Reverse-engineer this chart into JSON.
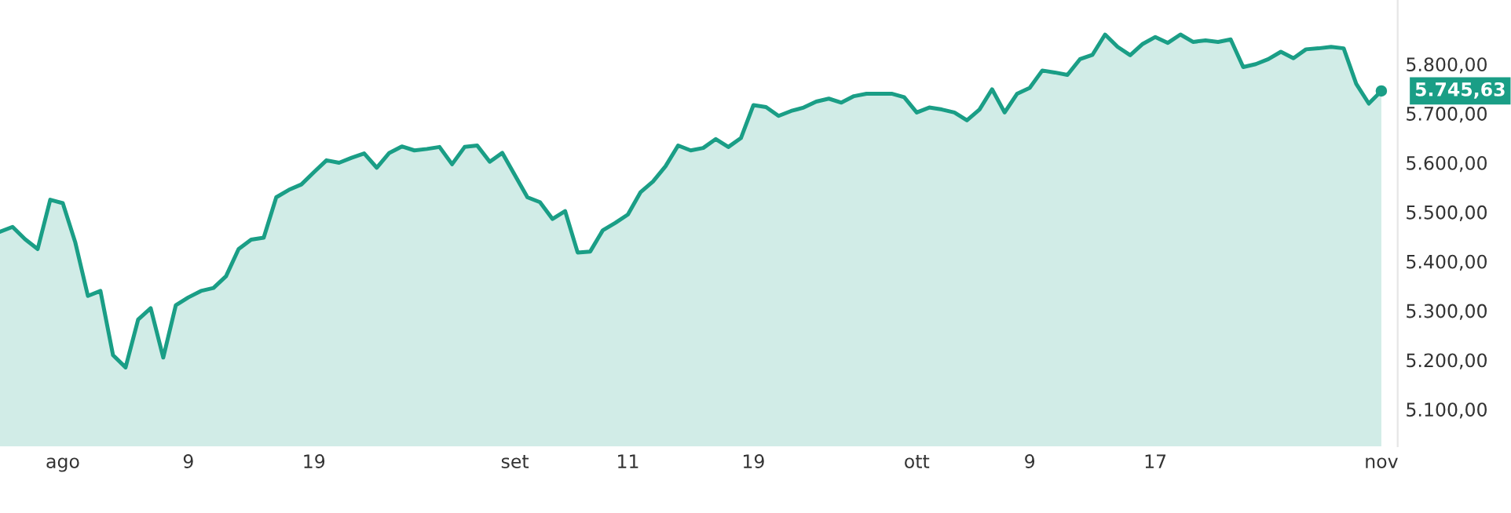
{
  "chart_data": {
    "type": "area",
    "categories": [
      null,
      null,
      null,
      null,
      null,
      "ago",
      null,
      null,
      null,
      null,
      null,
      null,
      null,
      null,
      null,
      "9",
      null,
      null,
      null,
      null,
      null,
      null,
      null,
      null,
      null,
      "19",
      null,
      null,
      null,
      null,
      null,
      null,
      null,
      null,
      null,
      null,
      null,
      null,
      null,
      null,
      null,
      "set",
      null,
      null,
      null,
      null,
      null,
      null,
      null,
      null,
      "11",
      null,
      null,
      null,
      null,
      null,
      null,
      null,
      null,
      null,
      "19",
      null,
      null,
      null,
      null,
      null,
      null,
      null,
      null,
      null,
      null,
      null,
      null,
      "ott",
      null,
      null,
      null,
      null,
      null,
      null,
      null,
      null,
      "9",
      null,
      null,
      null,
      null,
      null,
      null,
      null,
      null,
      null,
      "17",
      null,
      null,
      null,
      null,
      null,
      null,
      null,
      null,
      null,
      null,
      null,
      null,
      null,
      null,
      null,
      null,
      null,
      "nov"
    ],
    "series": [
      {
        "color": "#1a9e86",
        "values": [
          5460,
          5470,
          5445,
          5425,
          5525,
          5518,
          5438,
          5330,
          5340,
          5210,
          5185,
          5282,
          5305,
          5205,
          5311,
          5327,
          5340,
          5346,
          5370,
          5425,
          5444,
          5448,
          5530,
          5545,
          5556,
          5581,
          5605,
          5600,
          5610,
          5619,
          5590,
          5620,
          5633,
          5625,
          5628,
          5632,
          5597,
          5632,
          5635,
          5602,
          5620,
          5575,
          5530,
          5520,
          5486,
          5502,
          5418,
          5420,
          5463,
          5478,
          5495,
          5540,
          5562,
          5593,
          5635,
          5625,
          5630,
          5648,
          5632,
          5650,
          5717,
          5713,
          5695,
          5705,
          5712,
          5724,
          5730,
          5722,
          5735,
          5740,
          5740,
          5740,
          5733,
          5702,
          5712,
          5708,
          5702,
          5686,
          5708,
          5749,
          5702,
          5740,
          5752,
          5787,
          5783,
          5778,
          5810,
          5819,
          5860,
          5835,
          5818,
          5841,
          5855,
          5843,
          5860,
          5845,
          5848,
          5845,
          5850,
          5794,
          5800,
          5810,
          5825,
          5812,
          5830,
          5832,
          5835,
          5832,
          5760,
          5720,
          5745.63
        ]
      }
    ],
    "ylim": [
      5025,
      5930
    ],
    "yticks": [
      {
        "value": 5100,
        "label": "5.100,00"
      },
      {
        "value": 5200,
        "label": "5.200,00"
      },
      {
        "value": 5300,
        "label": "5.300,00"
      },
      {
        "value": 5400,
        "label": "5.400,00"
      },
      {
        "value": 5500,
        "label": "5.500,00"
      },
      {
        "value": 5600,
        "label": "5.600,00"
      },
      {
        "value": 5700,
        "label": "5.700,00"
      },
      {
        "value": 5800,
        "label": "5.800,00"
      }
    ],
    "annotations": [
      {
        "text": "5.745,63",
        "x": "nov",
        "y": 5745.63
      }
    ],
    "grid": false,
    "legend": false
  }
}
